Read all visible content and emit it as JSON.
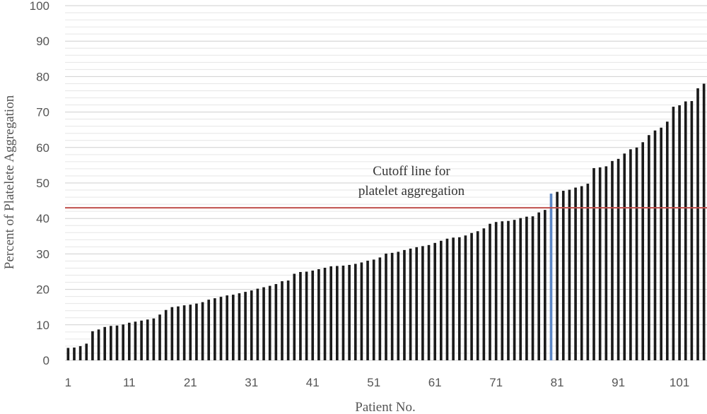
{
  "chart_data": {
    "type": "bar",
    "xlabel": "Patient No.",
    "ylabel": "Percent of Platelete Aggregation",
    "ylim": [
      0,
      100
    ],
    "yticks": [
      0,
      10,
      20,
      30,
      40,
      50,
      60,
      70,
      80,
      90,
      100
    ],
    "xticks": [
      1,
      11,
      21,
      31,
      41,
      51,
      61,
      71,
      81,
      91,
      101
    ],
    "grid": true,
    "bar_color": "#1a1a1a",
    "highlight_color": "#5b86c5",
    "highlight_patient": 80,
    "cutoff": {
      "value": 43,
      "color": "#c0504d",
      "label_line1": "Cutoff line for",
      "label_line2": "platelet aggregation"
    },
    "patients": [
      1,
      2,
      3,
      4,
      5,
      6,
      7,
      8,
      9,
      10,
      11,
      12,
      13,
      14,
      15,
      16,
      17,
      18,
      19,
      20,
      21,
      22,
      23,
      24,
      25,
      26,
      27,
      28,
      29,
      30,
      31,
      32,
      33,
      34,
      35,
      36,
      37,
      38,
      39,
      40,
      41,
      42,
      43,
      44,
      45,
      46,
      47,
      48,
      49,
      50,
      51,
      52,
      53,
      54,
      55,
      56,
      57,
      58,
      59,
      60,
      61,
      62,
      63,
      64,
      65,
      66,
      67,
      68,
      69,
      70,
      71,
      72,
      73,
      74,
      75,
      76,
      77,
      78,
      79,
      80,
      81,
      82,
      83,
      84,
      85,
      86,
      87,
      88,
      89,
      90,
      91,
      92,
      93,
      94,
      95,
      96,
      97,
      98,
      99,
      100,
      101,
      102,
      103,
      104,
      105
    ],
    "values": [
      3.5,
      3.6,
      4.0,
      4.7,
      8.2,
      8.7,
      9.4,
      9.7,
      9.8,
      10.1,
      10.6,
      10.9,
      11.2,
      11.5,
      11.8,
      12.9,
      14.2,
      15.0,
      15.2,
      15.5,
      15.7,
      16.0,
      16.4,
      17.1,
      17.5,
      17.9,
      18.3,
      18.5,
      18.9,
      19.3,
      19.7,
      20.2,
      20.6,
      21.0,
      21.5,
      22.3,
      22.5,
      24.4,
      24.9,
      25.0,
      25.3,
      25.7,
      26.1,
      26.5,
      26.6,
      26.7,
      26.9,
      27.2,
      27.6,
      28.1,
      28.4,
      29.0,
      30.1,
      30.3,
      30.6,
      31.1,
      31.5,
      31.9,
      32.2,
      32.5,
      33.1,
      33.7,
      34.3,
      34.6,
      34.7,
      35.2,
      35.9,
      36.4,
      37.2,
      38.5,
      39.0,
      39.2,
      39.3,
      39.6,
      40.1,
      40.5,
      40.6,
      41.7,
      42.4,
      47.0,
      47.5,
      47.8,
      48.1,
      48.7,
      49.1,
      49.8,
      54.2,
      54.4,
      54.7,
      56.2,
      56.8,
      58.3,
      59.5,
      60.0,
      61.5,
      63.5,
      64.8,
      65.6,
      67.3,
      71.5,
      71.9,
      73.0,
      73.1,
      76.7,
      78.0
    ]
  }
}
